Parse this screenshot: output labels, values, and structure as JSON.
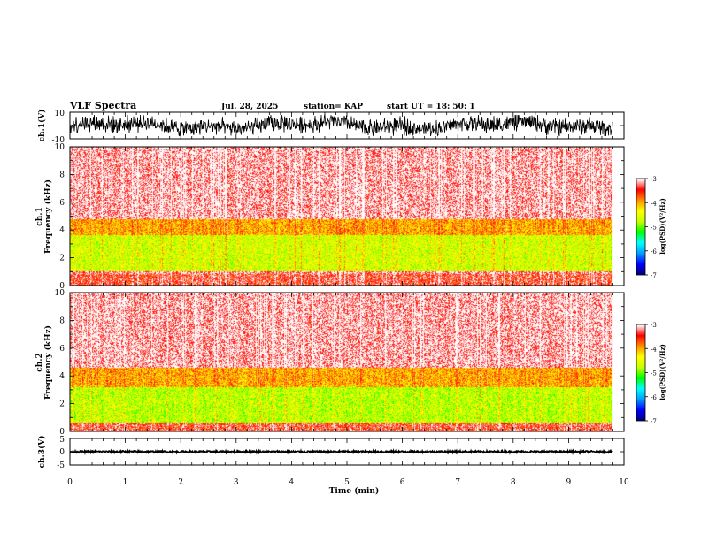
{
  "header": {
    "title": "VLF Spectra",
    "date": "Jul. 28, 2025",
    "station": "station= KAP",
    "start_ut": "start UT =  18: 50: 1"
  },
  "chart_data": [
    {
      "type": "line",
      "name": "ch.1 waveform",
      "ylabel": "ch.1(V)",
      "ylim": [
        -10,
        10
      ],
      "y_tick_labels": [
        "10",
        "-10"
      ],
      "xlim": [
        0,
        10
      ],
      "envelope_min": -8,
      "envelope_max": 8
    },
    {
      "type": "heatmap",
      "name": "ch.1 spectrogram",
      "ylabel": "ch.1\nFrequency (kHz)",
      "ylim": [
        0,
        10
      ],
      "y_ticks": [
        0,
        2,
        4,
        6,
        8,
        10
      ],
      "y_tick_labels": [
        "0",
        "2",
        "4",
        "6",
        "8",
        "10"
      ],
      "xlim": [
        0,
        10
      ],
      "data_end_min": 9.8,
      "bands_khz": [
        {
          "from": 0.0,
          "to": 0.8,
          "level": -3.4
        },
        {
          "from": 0.8,
          "to": 1.0,
          "level": -3.2
        },
        {
          "from": 1.0,
          "to": 3.6,
          "level": -4.6
        },
        {
          "from": 3.6,
          "to": 4.8,
          "level": -4.0
        },
        {
          "from": 4.8,
          "to": 10.0,
          "level": -3.1
        }
      ],
      "colorbar": {
        "label": "log(PSD)(V²/Hz)",
        "range": [
          -7,
          -3
        ],
        "ticks": [
          "-3",
          "-4",
          "-5",
          "-6",
          "-7"
        ]
      }
    },
    {
      "type": "heatmap",
      "name": "ch.2 spectrogram",
      "ylabel": "ch.2\nFrequency (kHz)",
      "ylim": [
        0,
        10
      ],
      "y_ticks": [
        0,
        2,
        4,
        6,
        8,
        10
      ],
      "y_tick_labels": [
        "0",
        "2",
        "4",
        "6",
        "8",
        "10"
      ],
      "xlim": [
        0,
        10
      ],
      "data_end_min": 9.8,
      "bands_khz": [
        {
          "from": 0.0,
          "to": 0.6,
          "level": -3.4
        },
        {
          "from": 0.6,
          "to": 3.2,
          "level": -4.7
        },
        {
          "from": 3.2,
          "to": 4.6,
          "level": -4.0
        },
        {
          "from": 4.6,
          "to": 10.0,
          "level": -3.1
        }
      ],
      "colorbar": {
        "label": "log(PSD)(V²/Hz)",
        "range": [
          -7,
          -3
        ],
        "ticks": [
          "-3",
          "-4",
          "-5",
          "-6",
          "-7"
        ]
      }
    },
    {
      "type": "line",
      "name": "ch.3 waveform",
      "ylabel": "ch.3(V)",
      "ylim": [
        -5,
        5
      ],
      "y_tick_labels": [
        "5",
        "0",
        "-5"
      ],
      "xlim": [
        0,
        10
      ],
      "baseline_v": 0,
      "noise_amplitude_v": 0.35
    }
  ],
  "x_axis": {
    "label": "Time (min)",
    "range": [
      0,
      10
    ],
    "tick_labels": [
      "0",
      "1",
      "2",
      "3",
      "4",
      "5",
      "6",
      "7",
      "8",
      "9",
      "10"
    ]
  },
  "colors": {
    "axis": "#000000",
    "cmap": [
      "#000080",
      "#0000ff",
      "#00a0ff",
      "#00ffff",
      "#00ff00",
      "#c8ff00",
      "#ffff00",
      "#ff9000",
      "#ff0000",
      "#ffffff"
    ]
  }
}
